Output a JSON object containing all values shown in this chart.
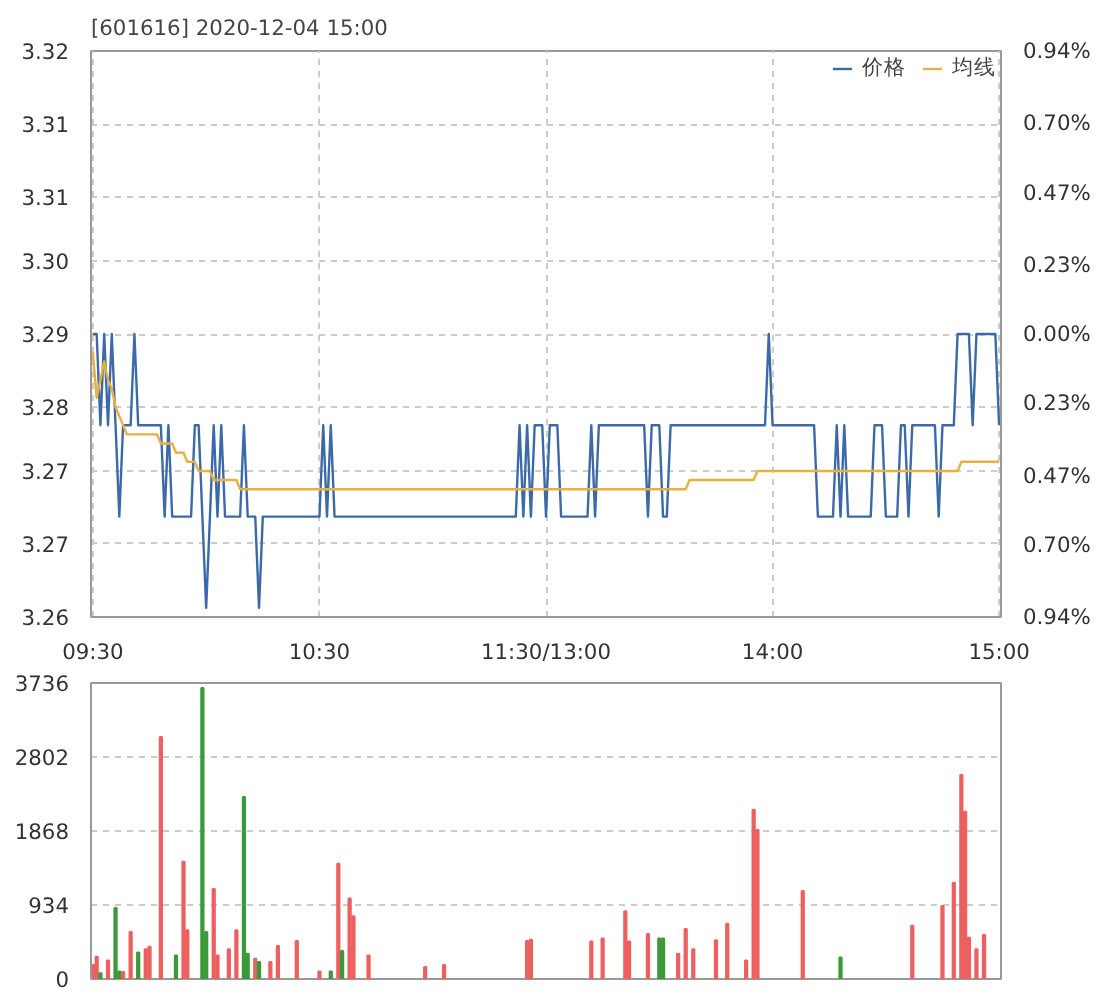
{
  "chart_data": [
    {
      "type": "line",
      "title": "[601616] 2020-12-04 15:00",
      "legend": "top right",
      "grid": true,
      "categories": [
        "09:30",
        null,
        null,
        null,
        null,
        null,
        null,
        null,
        null,
        null,
        null,
        null,
        null,
        null,
        null,
        null,
        null,
        null,
        null,
        null,
        null,
        null,
        null,
        null,
        null,
        null,
        null,
        null,
        null,
        null,
        null,
        null,
        null,
        null,
        null,
        null,
        null,
        null,
        null,
        null,
        null,
        null,
        null,
        null,
        null,
        null,
        null,
        null,
        null,
        null,
        null,
        null,
        null,
        null,
        null,
        null,
        null,
        null,
        null,
        null,
        "10:30",
        null,
        null,
        null,
        null,
        null,
        null,
        null,
        null,
        null,
        null,
        null,
        null,
        null,
        null,
        null,
        null,
        null,
        null,
        null,
        null,
        null,
        null,
        null,
        null,
        null,
        null,
        null,
        null,
        null,
        null,
        null,
        null,
        null,
        null,
        null,
        null,
        null,
        null,
        null,
        null,
        null,
        null,
        null,
        null,
        null,
        null,
        null,
        null,
        null,
        null,
        null,
        null,
        null,
        null,
        null,
        null,
        null,
        null,
        null,
        "11:30/13:00",
        null,
        null,
        null,
        null,
        null,
        null,
        null,
        null,
        null,
        null,
        null,
        null,
        null,
        null,
        null,
        null,
        null,
        null,
        null,
        null,
        null,
        null,
        null,
        null,
        null,
        null,
        null,
        null,
        null,
        null,
        null,
        null,
        null,
        null,
        null,
        null,
        null,
        null,
        null,
        null,
        null,
        null,
        null,
        null,
        null,
        null,
        null,
        null,
        null,
        null,
        null,
        null,
        null,
        null,
        null,
        null,
        null,
        null,
        null,
        "14:00",
        null,
        null,
        null,
        null,
        null,
        null,
        null,
        null,
        null,
        null,
        null,
        null,
        null,
        null,
        null,
        null,
        null,
        null,
        null,
        null,
        null,
        null,
        null,
        null,
        null,
        null,
        null,
        null,
        null,
        null,
        null,
        null,
        null,
        null,
        null,
        null,
        null,
        null,
        null,
        null,
        null,
        null,
        null,
        null,
        null,
        null,
        null,
        null,
        null,
        null,
        null,
        null,
        null,
        null,
        null,
        null,
        null,
        null,
        null,
        "15:00"
      ],
      "ylim": [
        3.259,
        3.321
      ],
      "yticks": [
        {
          "value": 3.259,
          "label": "3.26"
        },
        {
          "value": 3.267,
          "label": "3.27"
        },
        {
          "value": 3.275,
          "label": "3.27"
        },
        {
          "value": 3.282,
          "label": "3.28"
        },
        {
          "value": 3.29,
          "label": "3.29"
        },
        {
          "value": 3.298,
          "label": "3.30"
        },
        {
          "value": 3.305,
          "label": "3.31"
        },
        {
          "value": 3.313,
          "label": "3.31"
        },
        {
          "value": 3.321,
          "label": "3.32"
        }
      ],
      "y2lim": [
        -0.94,
        0.94
      ],
      "y2ticks": [
        {
          "value": -0.94,
          "label": "0.94%"
        },
        {
          "value": -0.7,
          "label": "0.70%"
        },
        {
          "value": -0.47,
          "label": "0.47%"
        },
        {
          "value": -0.23,
          "label": "0.23%"
        },
        {
          "value": 0,
          "label": "0.00%"
        },
        {
          "value": 0.23,
          "label": "0.23%"
        },
        {
          "value": 0.47,
          "label": "0.47%"
        },
        {
          "value": 0.7,
          "label": "0.70%"
        },
        {
          "value": 0.94,
          "label": "0.94%"
        }
      ],
      "series": [
        {
          "name": "价格",
          "color": "#3c6aa8",
          "values": [
            3.29,
            3.29,
            3.28,
            3.29,
            3.28,
            3.29,
            3.28,
            3.27,
            3.28,
            3.28,
            3.28,
            3.29,
            3.28,
            3.28,
            3.28,
            3.28,
            3.28,
            3.28,
            3.28,
            3.27,
            3.28,
            3.27,
            3.27,
            3.27,
            3.27,
            3.27,
            3.27,
            3.28,
            3.28,
            3.27,
            3.26,
            3.27,
            3.28,
            3.27,
            3.28,
            3.27,
            3.27,
            3.27,
            3.27,
            3.27,
            3.28,
            3.27,
            3.27,
            3.27,
            3.26,
            3.27,
            3.27,
            3.27,
            3.27,
            3.27,
            3.27,
            3.27,
            3.27,
            3.27,
            3.27,
            3.27,
            3.27,
            3.27,
            3.27,
            3.27,
            3.27,
            3.28,
            3.27,
            3.28,
            3.27,
            3.27,
            3.27,
            3.27,
            3.27,
            3.27,
            3.27,
            3.27,
            3.27,
            3.27,
            3.27,
            3.27,
            3.27,
            3.27,
            3.27,
            3.27,
            3.27,
            3.27,
            3.27,
            3.27,
            3.27,
            3.27,
            3.27,
            3.27,
            3.27,
            3.27,
            3.27,
            3.27,
            3.27,
            3.27,
            3.27,
            3.27,
            3.27,
            3.27,
            3.27,
            3.27,
            3.27,
            3.27,
            3.27,
            3.27,
            3.27,
            3.27,
            3.27,
            3.27,
            3.27,
            3.27,
            3.27,
            3.27,
            3.27,
            3.28,
            3.27,
            3.28,
            3.27,
            3.28,
            3.28,
            3.28,
            3.27,
            3.28,
            3.28,
            3.28,
            3.27,
            3.27,
            3.27,
            3.27,
            3.27,
            3.27,
            3.27,
            3.27,
            3.28,
            3.27,
            3.28,
            3.28,
            3.28,
            3.28,
            3.28,
            3.28,
            3.28,
            3.28,
            3.28,
            3.28,
            3.28,
            3.28,
            3.28,
            3.27,
            3.28,
            3.28,
            3.28,
            3.27,
            3.27,
            3.28,
            3.28,
            3.28,
            3.28,
            3.28,
            3.28,
            3.28,
            3.28,
            3.28,
            3.28,
            3.28,
            3.28,
            3.28,
            3.28,
            3.28,
            3.28,
            3.28,
            3.28,
            3.28,
            3.28,
            3.28,
            3.28,
            3.28,
            3.28,
            3.28,
            3.28,
            3.29,
            3.28,
            3.28,
            3.28,
            3.28,
            3.28,
            3.28,
            3.28,
            3.28,
            3.28,
            3.28,
            3.28,
            3.28,
            3.27,
            3.27,
            3.27,
            3.27,
            3.27,
            3.28,
            3.27,
            3.28,
            3.27,
            3.27,
            3.27,
            3.27,
            3.27,
            3.27,
            3.27,
            3.28,
            3.28,
            3.28,
            3.27,
            3.27,
            3.27,
            3.27,
            3.28,
            3.28,
            3.27,
            3.28,
            3.28,
            3.28,
            3.28,
            3.28,
            3.28,
            3.28,
            3.27,
            3.28,
            3.28,
            3.28,
            3.28,
            3.29,
            3.29,
            3.29,
            3.29,
            3.28,
            3.29,
            3.29,
            3.29,
            3.29,
            3.29,
            3.29,
            3.28
          ]
        },
        {
          "name": "均线",
          "color": "#e8b040",
          "values": [
            3.288,
            3.283,
            3.285,
            3.287,
            3.285,
            3.284,
            3.282,
            3.281,
            3.28,
            3.279,
            3.279,
            3.279,
            3.279,
            3.279,
            3.279,
            3.279,
            3.279,
            3.279,
            3.278,
            3.278,
            3.278,
            3.278,
            3.277,
            3.277,
            3.277,
            3.276,
            3.276,
            3.276,
            3.275,
            3.275,
            3.275,
            3.275,
            3.274,
            3.274,
            3.274,
            3.274,
            3.274,
            3.274,
            3.274,
            3.273,
            3.273,
            3.273,
            3.273,
            3.273,
            3.273,
            3.273,
            3.273,
            3.273,
            3.273,
            3.273,
            3.273,
            3.273,
            3.273,
            3.273,
            3.273,
            3.273,
            3.273,
            3.273,
            3.273,
            3.273,
            3.273,
            3.273,
            3.273,
            3.273,
            3.273,
            3.273,
            3.273,
            3.273,
            3.273,
            3.273,
            3.273,
            3.273,
            3.273,
            3.273,
            3.273,
            3.273,
            3.273,
            3.273,
            3.273,
            3.273,
            3.273,
            3.273,
            3.273,
            3.273,
            3.273,
            3.273,
            3.273,
            3.273,
            3.273,
            3.273,
            3.273,
            3.273,
            3.273,
            3.273,
            3.273,
            3.273,
            3.273,
            3.273,
            3.273,
            3.273,
            3.273,
            3.273,
            3.273,
            3.273,
            3.273,
            3.273,
            3.273,
            3.273,
            3.273,
            3.273,
            3.273,
            3.273,
            3.273,
            3.273,
            3.273,
            3.273,
            3.273,
            3.273,
            3.273,
            3.273,
            3.273,
            3.273,
            3.273,
            3.273,
            3.273,
            3.273,
            3.273,
            3.273,
            3.273,
            3.273,
            3.273,
            3.273,
            3.273,
            3.273,
            3.273,
            3.273,
            3.273,
            3.273,
            3.273,
            3.273,
            3.273,
            3.273,
            3.273,
            3.273,
            3.273,
            3.273,
            3.273,
            3.273,
            3.273,
            3.273,
            3.273,
            3.273,
            3.273,
            3.273,
            3.273,
            3.273,
            3.273,
            3.273,
            3.274,
            3.274,
            3.274,
            3.274,
            3.274,
            3.274,
            3.274,
            3.274,
            3.274,
            3.274,
            3.274,
            3.274,
            3.274,
            3.274,
            3.274,
            3.274,
            3.274,
            3.274,
            3.275,
            3.275,
            3.275,
            3.275,
            3.275,
            3.275,
            3.275,
            3.275,
            3.275,
            3.275,
            3.275,
            3.275,
            3.275,
            3.275,
            3.275,
            3.275,
            3.275,
            3.275,
            3.275,
            3.275,
            3.275,
            3.275,
            3.275,
            3.275,
            3.275,
            3.275,
            3.275,
            3.275,
            3.275,
            3.275,
            3.275,
            3.275,
            3.275,
            3.275,
            3.275,
            3.275,
            3.275,
            3.275,
            3.275,
            3.275,
            3.275,
            3.275,
            3.275,
            3.275,
            3.275,
            3.275,
            3.275,
            3.275,
            3.275,
            3.275,
            3.275,
            3.275,
            3.275,
            3.275,
            3.276,
            3.276,
            3.276,
            3.276,
            3.276,
            3.276,
            3.276,
            3.276,
            3.276,
            3.276,
            3.276
          ]
        }
      ]
    },
    {
      "type": "bar",
      "grid": "y",
      "tick_labels": "y",
      "categories": [
        null,
        null,
        null,
        null,
        null,
        null,
        null,
        null,
        null,
        null,
        null,
        null,
        null,
        null,
        null,
        null,
        null,
        null,
        null,
        null,
        null,
        null,
        null,
        null,
        null,
        null,
        null,
        null,
        null,
        null,
        null,
        null,
        null,
        null,
        null,
        null,
        null,
        null,
        null,
        null,
        null,
        null,
        null,
        null,
        null,
        null,
        null,
        null,
        null,
        null,
        null,
        null,
        null,
        null,
        null,
        null,
        null,
        null,
        null,
        null,
        null,
        null,
        null,
        null,
        null,
        null,
        null,
        null,
        null,
        null,
        null,
        null,
        null,
        null,
        null,
        null,
        null,
        null,
        null,
        null,
        null,
        null,
        null,
        null,
        null,
        null,
        null,
        null,
        null,
        null,
        null,
        null,
        null,
        null,
        null,
        null,
        null,
        null,
        null,
        null,
        null,
        null,
        null,
        null,
        null,
        null,
        null,
        null,
        null,
        null,
        null,
        null,
        null,
        null,
        null,
        null,
        null,
        null,
        null,
        null,
        null,
        null,
        null,
        null,
        null,
        null,
        null,
        null,
        null,
        null,
        null,
        null,
        null,
        null,
        null,
        null,
        null,
        null,
        null,
        null,
        null,
        null,
        null,
        null,
        null,
        null,
        null,
        null,
        null,
        null,
        null,
        null,
        null,
        null,
        null,
        null,
        null,
        null,
        null,
        null,
        null,
        null,
        null,
        null,
        null,
        null,
        null,
        null,
        null,
        null,
        null,
        null,
        null,
        null,
        null,
        null,
        null,
        null,
        null,
        null,
        null,
        null,
        null,
        null,
        null,
        null,
        null,
        null,
        null,
        null,
        null,
        null,
        null,
        null,
        null,
        null,
        null,
        null,
        null,
        null,
        null,
        null,
        null,
        null,
        null,
        null,
        null,
        null,
        null,
        null,
        null,
        null,
        null,
        null,
        null,
        null,
        null,
        null,
        null,
        null,
        null,
        null,
        null,
        null,
        null,
        null,
        null,
        null,
        null,
        null,
        null,
        null,
        null,
        null,
        null,
        null,
        null,
        null,
        null,
        null,
        null
      ],
      "ylim": [
        0,
        3736
      ],
      "yticks": [
        0,
        934,
        1868,
        2802,
        3736
      ],
      "values": [
        176,
        280,
        72,
        null,
        232,
        null,
        896,
        96,
        88,
        null,
        592,
        null,
        336,
        null,
        376,
        408,
        null,
        null,
        3056,
        null,
        null,
        null,
        296,
        null,
        1480,
        616,
        null,
        null,
        null,
        3672,
        592,
        null,
        1136,
        296,
        null,
        null,
        376,
        null,
        616,
        null,
        2296,
        320,
        null,
        256,
        216,
        null,
        null,
        216,
        null,
        416,
        null,
        null,
        null,
        null,
        480,
        null,
        null,
        null,
        null,
        null,
        96,
        null,
        null,
        96,
        null,
        1456,
        352,
        null,
        1016,
        792,
        null,
        null,
        null,
        296,
        null,
        null,
        null,
        null,
        null,
        null,
        null,
        null,
        null,
        null,
        null,
        null,
        null,
        null,
        152,
        null,
        null,
        null,
        null,
        176,
        null,
        null,
        null,
        null,
        null,
        null,
        null,
        null,
        null,
        null,
        null,
        null,
        null,
        null,
        null,
        null,
        null,
        null,
        null,
        null,
        null,
        480,
        496,
        null,
        null,
        null,
        null,
        null,
        null,
        null,
        null,
        null,
        null,
        null,
        null,
        null,
        null,
        null,
        472,
        null,
        null,
        512,
        null,
        null,
        null,
        null,
        null,
        856,
        472,
        null,
        null,
        null,
        null,
        568,
        null,
        null,
        512,
        512,
        null,
        null,
        null,
        320,
        null,
        632,
        null,
        376,
        null,
        null,
        null,
        null,
        null,
        488,
        null,
        null,
        696,
        null,
        null,
        null,
        null,
        232,
        null,
        2136,
        1880,
        null,
        null,
        null,
        null,
        null,
        null,
        null,
        null,
        null,
        null,
        null,
        1112,
        null,
        null,
        null,
        null,
        null,
        null,
        null,
        null,
        null,
        272,
        null,
        null,
        null,
        null,
        null,
        null,
        null,
        null,
        null,
        null,
        null,
        null,
        null,
        null,
        null,
        null,
        null,
        null,
        672,
        null,
        null,
        null,
        null,
        null,
        null,
        null,
        920,
        null,
        null,
        1216,
        null,
        2576,
        2112,
        520,
        null,
        376,
        null,
        560,
        null,
        null,
        null,
        null
      ],
      "colors": [
        "#ee6060",
        "#ee6060",
        "#3a9a3a",
        "#ee6060",
        "#ee6060",
        "#ee6060",
        "#3a9a3a",
        "#3a9a3a",
        "#ee6060",
        "#ee6060",
        "#ee6060",
        "#ee6060",
        "#3a9a3a",
        "#ee6060",
        "#ee6060",
        "#ee6060",
        "#ee6060",
        "#ee6060",
        "#ee6060",
        "#ee6060",
        "#ee6060",
        "#ee6060",
        "#3a9a3a",
        "#ee6060",
        "#ee6060",
        "#ee6060",
        "#ee6060",
        "#ee6060",
        "#ee6060",
        "#3a9a3a",
        "#3a9a3a",
        "#ee6060",
        "#ee6060",
        "#ee6060",
        "#ee6060",
        "#ee6060",
        "#ee6060",
        "#ee6060",
        "#ee6060",
        "#ee6060",
        "#3a9a3a",
        "#3a9a3a",
        "#ee6060",
        "#ee6060",
        "#3a9a3a",
        "#ee6060",
        "#ee6060",
        "#ee6060",
        "#ee6060",
        "#ee6060",
        "#ee6060",
        "#ee6060",
        "#ee6060",
        "#ee6060",
        "#ee6060",
        "#ee6060",
        "#ee6060",
        "#ee6060",
        "#ee6060",
        "#ee6060",
        "#ee6060",
        "#ee6060",
        "#ee6060",
        "#3a9a3a",
        "#ee6060",
        "#ee6060",
        "#3a9a3a",
        "#ee6060",
        "#ee6060",
        "#ee6060",
        "#ee6060",
        "#ee6060",
        "#ee6060",
        "#ee6060",
        "#ee6060",
        "#ee6060",
        "#ee6060",
        "#ee6060",
        "#ee6060",
        "#ee6060",
        "#ee6060",
        "#ee6060",
        "#ee6060",
        "#ee6060",
        "#ee6060",
        "#ee6060",
        "#ee6060",
        "#ee6060",
        "#ee6060",
        "#ee6060",
        "#ee6060",
        "#ee6060",
        "#ee6060",
        "#ee6060",
        "#ee6060",
        "#ee6060",
        "#ee6060",
        "#ee6060",
        "#ee6060",
        "#ee6060",
        "#ee6060",
        "#ee6060",
        "#ee6060",
        "#ee6060",
        "#ee6060",
        "#ee6060",
        "#ee6060",
        "#ee6060",
        "#ee6060",
        "#ee6060",
        "#ee6060",
        "#ee6060",
        "#ee6060",
        "#ee6060",
        "#ee6060",
        "#ee6060",
        "#ee6060",
        "#ee6060",
        "#ee6060",
        "#ee6060",
        "#ee6060",
        "#ee6060",
        "#ee6060",
        "#ee6060",
        "#ee6060",
        "#ee6060",
        "#ee6060",
        "#ee6060",
        "#ee6060",
        "#ee6060",
        "#ee6060",
        "#ee6060",
        "#ee6060",
        "#ee6060",
        "#ee6060",
        "#ee6060",
        "#ee6060",
        "#ee6060",
        "#ee6060",
        "#ee6060",
        "#ee6060",
        "#ee6060",
        "#ee6060",
        "#ee6060",
        "#ee6060",
        "#ee6060",
        "#ee6060",
        "#ee6060",
        "#ee6060",
        "#ee6060",
        "#3a9a3a",
        "#3a9a3a",
        "#ee6060",
        "#ee6060",
        "#ee6060",
        "#ee6060",
        "#ee6060",
        "#ee6060",
        "#ee6060",
        "#ee6060",
        "#ee6060",
        "#ee6060",
        "#ee6060",
        "#ee6060",
        "#ee6060",
        "#ee6060",
        "#ee6060",
        "#ee6060",
        "#ee6060",
        "#ee6060",
        "#ee6060",
        "#ee6060",
        "#ee6060",
        "#ee6060",
        "#ee6060",
        "#ee6060",
        "#ee6060",
        "#ee6060",
        "#ee6060",
        "#ee6060",
        "#ee6060",
        "#ee6060",
        "#ee6060",
        "#ee6060",
        "#ee6060",
        "#ee6060",
        "#ee6060",
        "#ee6060",
        "#ee6060",
        "#ee6060",
        "#ee6060",
        "#ee6060",
        "#ee6060",
        "#ee6060",
        "#ee6060",
        "#ee6060",
        "#ee6060",
        "#ee6060",
        "#3a9a3a",
        "#ee6060",
        "#ee6060",
        "#ee6060",
        "#ee6060",
        "#ee6060",
        "#ee6060",
        "#ee6060",
        "#ee6060",
        "#ee6060",
        "#ee6060",
        "#ee6060",
        "#ee6060",
        "#ee6060",
        "#ee6060",
        "#ee6060",
        "#ee6060",
        "#ee6060",
        "#ee6060",
        "#ee6060",
        "#ee6060",
        "#ee6060",
        "#ee6060",
        "#ee6060",
        "#ee6060",
        "#ee6060",
        "#ee6060",
        "#ee6060",
        "#ee6060",
        "#ee6060",
        "#ee6060",
        "#ee6060",
        "#ee6060",
        "#ee6060",
        "#ee6060",
        "#ee6060",
        "#ee6060",
        "#ee6060",
        "#ee6060",
        "#ee6060",
        "#ee6060",
        "#ee6060",
        "#ee6060"
      ]
    }
  ]
}
